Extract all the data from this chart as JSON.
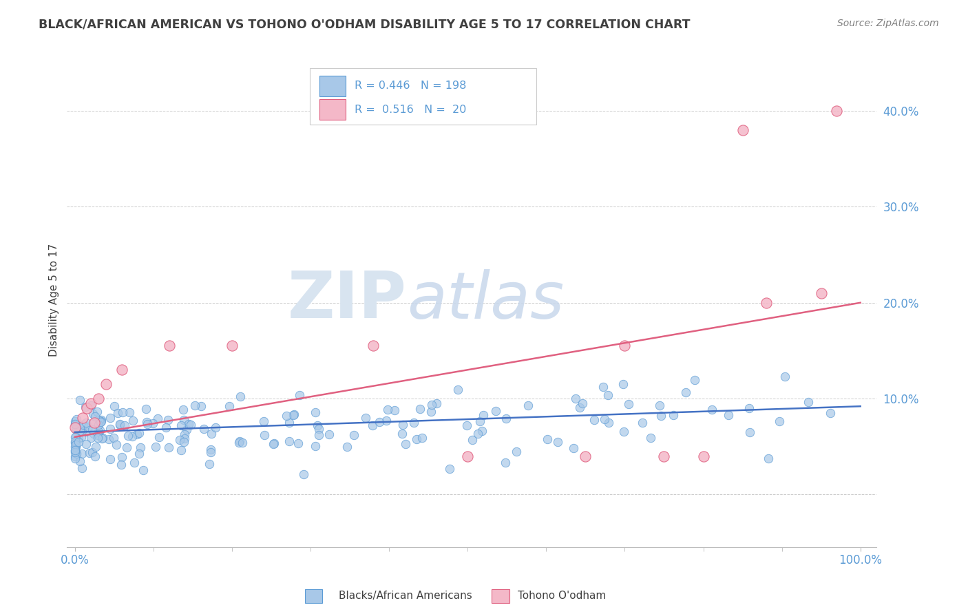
{
  "title": "BLACK/AFRICAN AMERICAN VS TOHONO O'ODHAM DISABILITY AGE 5 TO 17 CORRELATION CHART",
  "source_text": "Source: ZipAtlas.com",
  "ylabel": "Disability Age 5 to 17",
  "legend_R1": "R = 0.446",
  "legend_N1": "N = 198",
  "legend_R2": "R = 0.516",
  "legend_N2": "N = 20",
  "blue_color": "#A8C8E8",
  "blue_edge_color": "#5B9BD5",
  "pink_color": "#F4B8C8",
  "pink_edge_color": "#E06080",
  "blue_line_color": "#4472C4",
  "pink_line_color": "#E06080",
  "title_color": "#404040",
  "source_color": "#808080",
  "axis_color": "#5B9BD5",
  "grid_color": "#CCCCCC",
  "background_color": "#FFFFFF",
  "watermark_color": "#D8E4F0",
  "blue_line_y0": 0.065,
  "blue_line_y1": 0.092,
  "pink_line_y0": 0.06,
  "pink_line_y1": 0.2,
  "xlim_min": -0.01,
  "xlim_max": 1.02,
  "ylim_min": -0.055,
  "ylim_max": 0.46
}
